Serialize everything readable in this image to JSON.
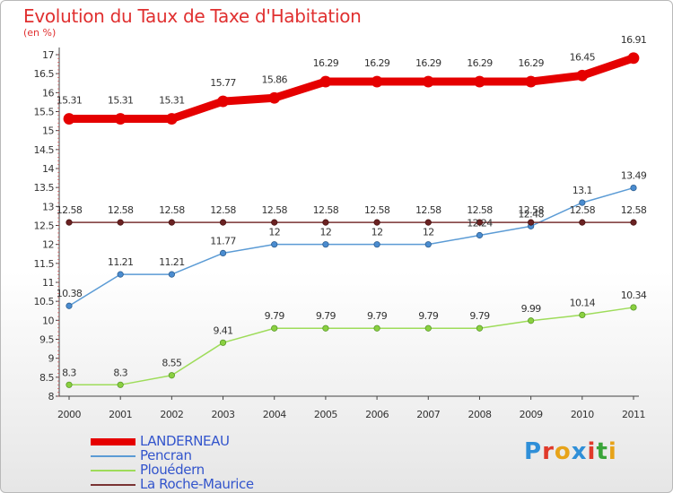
{
  "title": "Evolution du Taux de Taxe d'Habitation",
  "subtitle": "(en %)",
  "chart_data": {
    "type": "line",
    "title": "Evolution du Taux de Taxe d'Habitation",
    "ylabel": "(en %)",
    "xlabel": "",
    "x": [
      "2000",
      "2001",
      "2002",
      "2003",
      "2004",
      "2005",
      "2006",
      "2007",
      "2008",
      "2009",
      "2010",
      "2011"
    ],
    "ylim": [
      8,
      17
    ],
    "yticks": [
      "8",
      "8.5",
      "9",
      "9.5",
      "10",
      "10.5",
      "11",
      "11.5",
      "12",
      "12.5",
      "13",
      "13.5",
      "14",
      "14.5",
      "15",
      "15.5",
      "16",
      "16.5",
      "17"
    ],
    "grid": false,
    "legend_position": "bottom-left",
    "series": [
      {
        "name": "LANDERNEAU",
        "color": "#e50000",
        "values": [
          15.31,
          15.31,
          15.31,
          15.77,
          15.86,
          16.29,
          16.29,
          16.29,
          16.29,
          16.29,
          16.45,
          16.91
        ],
        "labels": [
          "15.31",
          "15.31",
          "15.31",
          "15.77",
          "15.86",
          "16.29",
          "16.29",
          "16.29",
          "16.29",
          "16.29",
          "16.45",
          "16.91"
        ]
      },
      {
        "name": "Pencran",
        "color": "#5b9bd5",
        "values": [
          10.38,
          11.21,
          11.21,
          11.77,
          12,
          12,
          12,
          12,
          12.24,
          12.48,
          13.1,
          13.49
        ],
        "labels": [
          "10.38",
          "11.21",
          "11.21",
          "11.77",
          "12",
          "12",
          "12",
          "12",
          "12.24",
          "12.48",
          "13.1",
          "13.49"
        ]
      },
      {
        "name": "Plouédern",
        "color": "#9edc5a",
        "values": [
          8.3,
          8.3,
          8.55,
          9.41,
          9.79,
          9.79,
          9.79,
          9.79,
          9.79,
          9.99,
          10.14,
          10.34
        ],
        "labels": [
          "8.3",
          "8.3",
          "8.55",
          "9.41",
          "9.79",
          "9.79",
          "9.79",
          "9.79",
          "9.79",
          "9.99",
          "10.14",
          "10.34"
        ]
      },
      {
        "name": "La Roche-Maurice",
        "color": "#7a3333",
        "values": [
          12.58,
          12.58,
          12.58,
          12.58,
          12.58,
          12.58,
          12.58,
          12.58,
          12.58,
          12.58,
          12.58,
          12.58
        ],
        "labels": [
          "12.58",
          "12.58",
          "12.58",
          "12.58",
          "12.58",
          "12.58",
          "12.58",
          "12.58",
          "12.58",
          "12.58",
          "12.58",
          "12.58"
        ]
      }
    ]
  },
  "logo": {
    "text": "Proxiti",
    "letters": [
      "P",
      "r",
      "o",
      "x",
      "i",
      "t",
      "i"
    ],
    "colors": [
      "#2f8fd8",
      "#e03a2a",
      "#e7a319",
      "#2f8fd8",
      "#e03a2a",
      "#3aa43a",
      "#e7a319"
    ]
  }
}
